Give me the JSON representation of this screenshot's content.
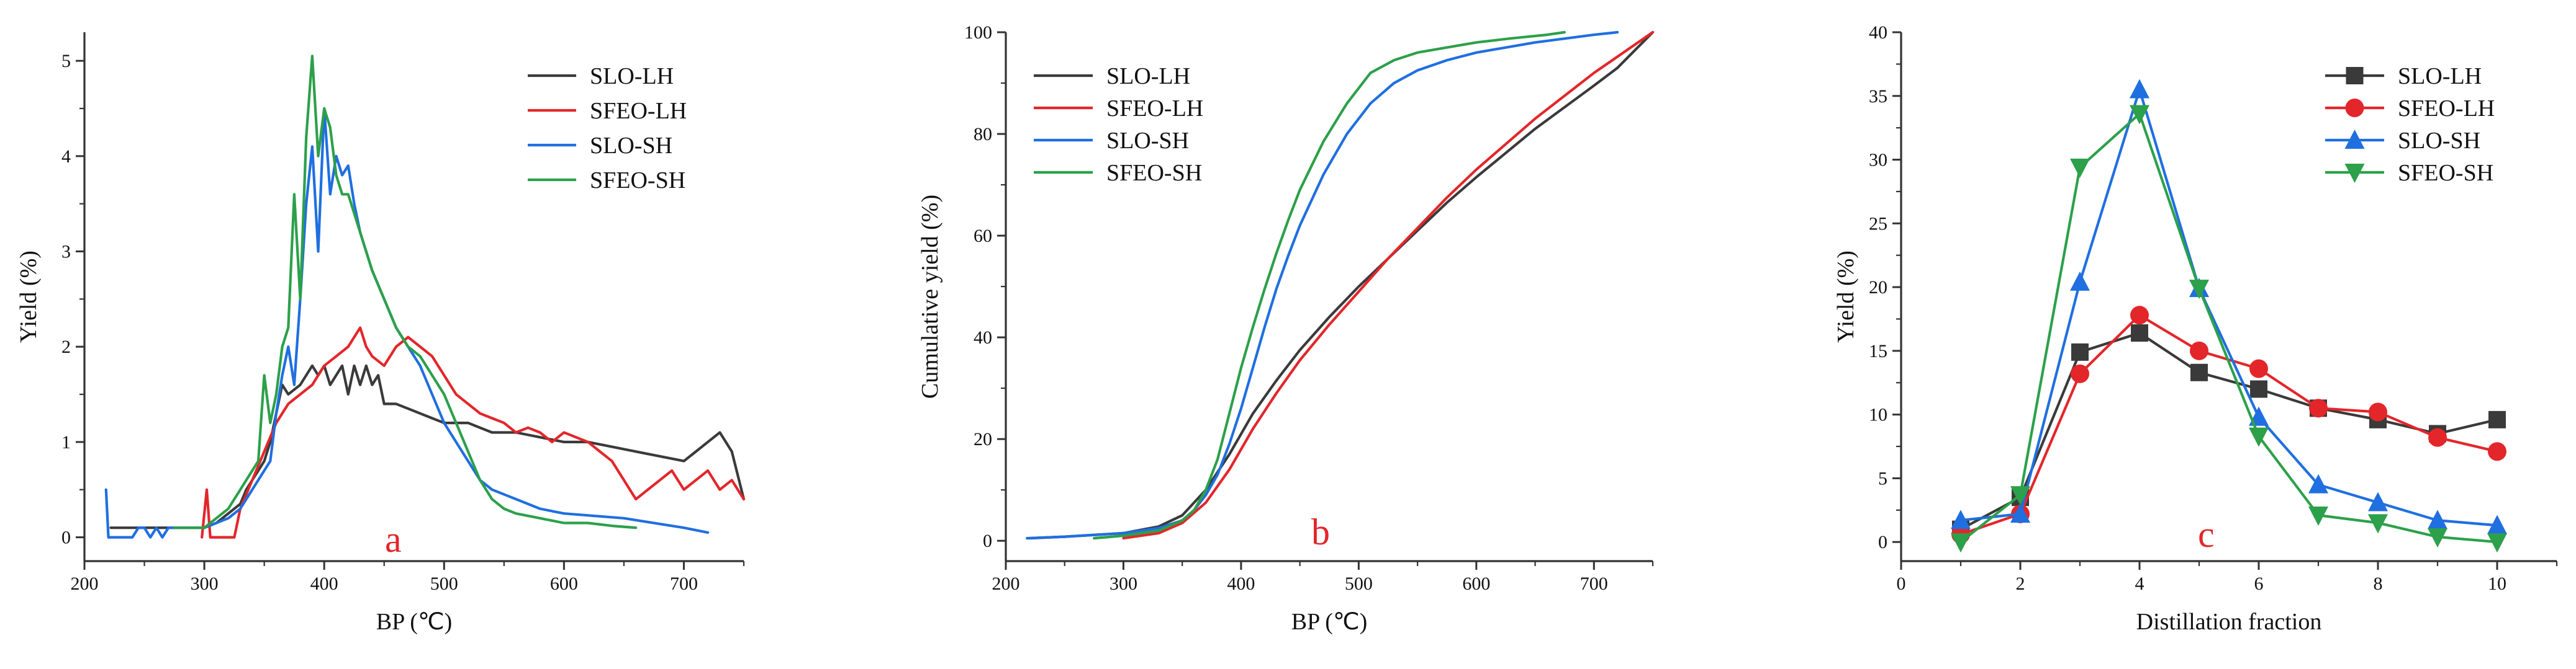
{
  "colors": {
    "SLO-LH": "#3a3a3a",
    "SFEO-LH": "#e3262a",
    "SLO-SH": "#1f6fe0",
    "SFEO-SH": "#2ca04a"
  },
  "chart_data": [
    {
      "panel": "a",
      "type": "line",
      "title": "",
      "xlabel": "BP (℃)",
      "ylabel": "Yield (%)",
      "xlim": [
        200,
        750
      ],
      "ylim": [
        -0.25,
        5.3
      ],
      "xticks": [
        200,
        300,
        400,
        500,
        600,
        700
      ],
      "yticks": [
        0,
        1,
        2,
        3,
        4,
        5
      ],
      "legend_position": "top-right",
      "series": [
        {
          "name": "SLO-LH",
          "x": [
            222,
            230,
            300,
            310,
            320,
            330,
            335,
            340,
            345,
            350,
            355,
            360,
            365,
            370,
            375,
            380,
            385,
            390,
            395,
            400,
            405,
            410,
            415,
            420,
            425,
            430,
            435,
            440,
            445,
            450,
            460,
            470,
            480,
            490,
            500,
            520,
            540,
            560,
            580,
            600,
            620,
            640,
            660,
            680,
            700,
            710,
            720,
            730,
            740,
            750
          ],
          "y": [
            0.1,
            0.1,
            0.1,
            0.15,
            0.25,
            0.35,
            0.5,
            0.6,
            0.7,
            0.8,
            1.0,
            1.3,
            1.6,
            1.5,
            1.55,
            1.6,
            1.7,
            1.8,
            1.7,
            1.8,
            1.6,
            1.7,
            1.8,
            1.5,
            1.8,
            1.6,
            1.8,
            1.6,
            1.7,
            1.4,
            1.4,
            1.35,
            1.3,
            1.25,
            1.2,
            1.2,
            1.1,
            1.1,
            1.05,
            1.0,
            1.0,
            0.95,
            0.9,
            0.85,
            0.8,
            0.9,
            1.0,
            1.1,
            0.9,
            0.4
          ]
        },
        {
          "name": "SFEO-LH",
          "x": [
            298,
            302,
            305,
            310,
            320,
            325,
            330,
            340,
            350,
            360,
            370,
            380,
            390,
            400,
            410,
            420,
            425,
            430,
            435,
            440,
            450,
            460,
            470,
            480,
            490,
            500,
            510,
            520,
            530,
            540,
            550,
            560,
            570,
            580,
            590,
            600,
            610,
            620,
            630,
            640,
            650,
            660,
            670,
            680,
            690,
            700,
            710,
            720,
            730,
            740,
            750
          ],
          "y": [
            0.0,
            0.5,
            0.0,
            0.0,
            0.0,
            0.0,
            0.3,
            0.6,
            0.9,
            1.2,
            1.4,
            1.5,
            1.6,
            1.8,
            1.9,
            2.0,
            2.1,
            2.2,
            2.0,
            1.9,
            1.8,
            2.0,
            2.1,
            2.0,
            1.9,
            1.7,
            1.5,
            1.4,
            1.3,
            1.25,
            1.2,
            1.1,
            1.15,
            1.1,
            1.0,
            1.1,
            1.05,
            1.0,
            0.9,
            0.8,
            0.6,
            0.4,
            0.5,
            0.6,
            0.7,
            0.5,
            0.6,
            0.7,
            0.5,
            0.6,
            0.4
          ]
        },
        {
          "name": "SLO-SH",
          "x": [
            218,
            220,
            222,
            240,
            245,
            250,
            255,
            260,
            265,
            270,
            300,
            320,
            330,
            340,
            350,
            355,
            360,
            365,
            370,
            375,
            380,
            385,
            390,
            395,
            400,
            405,
            410,
            415,
            420,
            425,
            430,
            440,
            450,
            460,
            470,
            480,
            490,
            500,
            510,
            520,
            530,
            540,
            560,
            580,
            600,
            650,
            700,
            720
          ],
          "y": [
            0.5,
            0.0,
            0.0,
            0.0,
            0.1,
            0.1,
            0.0,
            0.1,
            0.0,
            0.1,
            0.1,
            0.2,
            0.3,
            0.5,
            0.7,
            0.8,
            1.3,
            1.7,
            2.0,
            1.6,
            2.5,
            3.5,
            4.1,
            3.0,
            4.5,
            3.6,
            4.0,
            3.8,
            3.9,
            3.5,
            3.2,
            2.8,
            2.5,
            2.2,
            2.0,
            1.8,
            1.5,
            1.2,
            1.0,
            0.8,
            0.6,
            0.5,
            0.4,
            0.3,
            0.25,
            0.2,
            0.1,
            0.05
          ]
        },
        {
          "name": "SFEO-SH",
          "x": [
            275,
            300,
            320,
            330,
            340,
            345,
            350,
            355,
            360,
            365,
            370,
            375,
            380,
            385,
            390,
            395,
            400,
            405,
            410,
            415,
            420,
            430,
            440,
            450,
            460,
            470,
            480,
            490,
            500,
            510,
            520,
            530,
            540,
            550,
            560,
            580,
            600,
            620,
            640,
            660
          ],
          "y": [
            0.1,
            0.1,
            0.3,
            0.5,
            0.7,
            0.8,
            1.7,
            1.2,
            1.5,
            2.0,
            2.2,
            3.6,
            2.5,
            4.2,
            5.05,
            4.0,
            4.5,
            4.3,
            3.8,
            3.6,
            3.6,
            3.2,
            2.8,
            2.5,
            2.2,
            2.0,
            1.9,
            1.7,
            1.5,
            1.2,
            0.9,
            0.6,
            0.4,
            0.3,
            0.25,
            0.2,
            0.15,
            0.15,
            0.12,
            0.1
          ]
        }
      ]
    },
    {
      "panel": "b",
      "type": "line",
      "title": "",
      "xlabel": "BP (℃)",
      "ylabel": "Cumulative yield (%)",
      "xlim": [
        200,
        750
      ],
      "ylim": [
        -4,
        100
      ],
      "xticks": [
        200,
        300,
        400,
        500,
        600,
        700
      ],
      "yticks": [
        0,
        20,
        40,
        60,
        80,
        100
      ],
      "legend_position": "top-left",
      "series": [
        {
          "name": "SLO-LH",
          "x": [
            220,
            250,
            300,
            330,
            350,
            370,
            390,
            410,
            430,
            450,
            475,
            500,
            525,
            550,
            575,
            600,
            650,
            700,
            720,
            750
          ],
          "y": [
            0.5,
            0.8,
            1.5,
            2.8,
            5.0,
            10.0,
            17.0,
            25.0,
            31.5,
            37.5,
            44.0,
            50.0,
            55.5,
            61.0,
            66.5,
            71.5,
            81.0,
            89.5,
            93.0,
            100.0
          ]
        },
        {
          "name": "SFEO-LH",
          "x": [
            300,
            330,
            350,
            370,
            390,
            410,
            430,
            450,
            475,
            500,
            525,
            550,
            575,
            600,
            650,
            700,
            750
          ],
          "y": [
            0.5,
            1.5,
            3.5,
            7.5,
            14.0,
            22.0,
            29.0,
            35.5,
            42.5,
            49.0,
            55.5,
            61.5,
            67.5,
            73.0,
            83.0,
            92.0,
            100.0
          ]
        },
        {
          "name": "SLO-SH",
          "x": [
            218,
            250,
            300,
            330,
            350,
            360,
            370,
            380,
            390,
            400,
            410,
            420,
            430,
            440,
            450,
            470,
            490,
            510,
            530,
            550,
            575,
            600,
            650,
            700,
            720
          ],
          "y": [
            0.5,
            0.8,
            1.5,
            2.5,
            4.0,
            6.0,
            9.0,
            13.0,
            19.0,
            26.0,
            34.0,
            42.0,
            49.5,
            56.0,
            62.0,
            72.0,
            80.0,
            86.0,
            90.0,
            92.5,
            94.5,
            96.0,
            98.0,
            99.5,
            100.0
          ]
        },
        {
          "name": "SFEO-SH",
          "x": [
            275,
            300,
            330,
            350,
            360,
            370,
            380,
            390,
            400,
            410,
            420,
            430,
            440,
            450,
            470,
            490,
            510,
            530,
            550,
            575,
            600,
            630,
            660,
            675
          ],
          "y": [
            0.5,
            1.0,
            2.0,
            4.0,
            6.0,
            10.0,
            16.0,
            25.0,
            34.0,
            42.0,
            49.5,
            56.5,
            63.0,
            69.0,
            78.5,
            86.0,
            92.0,
            94.5,
            96.0,
            97.0,
            98.0,
            98.8,
            99.5,
            100.0
          ]
        }
      ]
    },
    {
      "panel": "c",
      "type": "line",
      "title": "",
      "xlabel": "Distillation fraction",
      "ylabel": "Yield (%)",
      "xlim": [
        0,
        11
      ],
      "ylim": [
        -1.5,
        40
      ],
      "xticks": [
        0,
        2,
        4,
        6,
        8,
        10
      ],
      "yticks": [
        0,
        5,
        10,
        15,
        20,
        25,
        30,
        35,
        40
      ],
      "legend_position": "top-right",
      "series": [
        {
          "name": "SLO-LH",
          "marker": "square",
          "x": [
            1,
            2,
            3,
            4,
            5,
            6,
            7,
            8,
            9,
            10
          ],
          "y": [
            1.0,
            3.5,
            14.9,
            16.4,
            13.3,
            12.0,
            10.5,
            9.6,
            8.5,
            9.6
          ]
        },
        {
          "name": "SFEO-LH",
          "marker": "circle",
          "x": [
            1,
            2,
            3,
            4,
            5,
            6,
            7,
            8,
            9,
            10
          ],
          "y": [
            0.6,
            2.2,
            13.2,
            17.8,
            15.0,
            13.6,
            10.5,
            10.2,
            8.2,
            7.1
          ]
        },
        {
          "name": "SLO-SH",
          "marker": "triangle-up",
          "x": [
            1,
            2,
            3,
            4,
            5,
            6,
            7,
            8,
            9,
            10
          ],
          "y": [
            1.7,
            2.2,
            20.4,
            35.5,
            19.9,
            9.8,
            4.5,
            3.1,
            1.7,
            1.3
          ]
        },
        {
          "name": "SFEO-SH",
          "marker": "triangle-down",
          "x": [
            1,
            2,
            3,
            4,
            5,
            6,
            7,
            8,
            9,
            10
          ],
          "y": [
            0.0,
            3.7,
            29.4,
            33.6,
            19.9,
            8.3,
            2.1,
            1.5,
            0.4,
            0.0
          ]
        }
      ]
    }
  ]
}
